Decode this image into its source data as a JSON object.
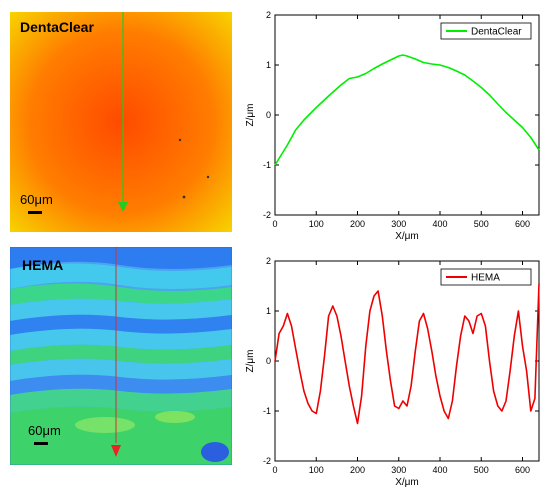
{
  "images": [
    {
      "label": "DentaClear",
      "scale_text": "60μm",
      "profile_line_color": "#22cc22",
      "arrow_color": "#22cc22"
    },
    {
      "label": "HEMA",
      "scale_text": "60μm",
      "profile_line_color": "#cc3333",
      "arrow_color": "#ee2222"
    }
  ],
  "chart_data": [
    {
      "type": "line",
      "xlabel": "X/μm",
      "ylabel": "Z/μm",
      "xlim": [
        0,
        640
      ],
      "ylim": [
        -2,
        2
      ],
      "xticks": [
        "0",
        "100",
        "200",
        "300",
        "400",
        "500",
        "600"
      ],
      "yticks": [
        "-2",
        "-1",
        "0",
        "1",
        "2"
      ],
      "legend_position": "top-right",
      "series": [
        {
          "name": "DentaClear",
          "color": "#00ee00",
          "x": [
            0,
            15,
            30,
            50,
            70,
            100,
            130,
            160,
            180,
            200,
            220,
            240,
            260,
            280,
            300,
            310,
            320,
            340,
            360,
            380,
            400,
            420,
            440,
            460,
            480,
            500,
            520,
            540,
            560,
            580,
            600,
            620,
            640
          ],
          "y": [
            -1.0,
            -0.8,
            -0.6,
            -0.3,
            -0.1,
            0.15,
            0.38,
            0.6,
            0.73,
            0.76,
            0.83,
            0.93,
            1.02,
            1.1,
            1.18,
            1.2,
            1.18,
            1.12,
            1.05,
            1.02,
            1.0,
            0.95,
            0.88,
            0.8,
            0.68,
            0.55,
            0.4,
            0.22,
            0.05,
            -0.1,
            -0.25,
            -0.45,
            -0.7
          ]
        }
      ]
    },
    {
      "type": "line",
      "xlabel": "X/μm",
      "ylabel": "Z/μm",
      "xlim": [
        0,
        640
      ],
      "ylim": [
        -2,
        2
      ],
      "xticks": [
        "0",
        "100",
        "200",
        "300",
        "400",
        "500",
        "600"
      ],
      "yticks": [
        "-2",
        "-1",
        "0",
        "1",
        "2"
      ],
      "legend_position": "top-right",
      "series": [
        {
          "name": "HEMA",
          "color": "#ee0000",
          "x": [
            0,
            10,
            20,
            30,
            40,
            50,
            60,
            70,
            80,
            90,
            100,
            110,
            120,
            130,
            140,
            150,
            160,
            170,
            180,
            190,
            200,
            210,
            220,
            230,
            240,
            250,
            260,
            270,
            280,
            290,
            300,
            310,
            320,
            330,
            340,
            350,
            360,
            370,
            380,
            390,
            400,
            410,
            420,
            430,
            440,
            450,
            460,
            470,
            480,
            490,
            500,
            510,
            520,
            530,
            540,
            550,
            560,
            570,
            580,
            590,
            600,
            610,
            620,
            630,
            640
          ],
          "y": [
            0.0,
            0.55,
            0.7,
            0.95,
            0.7,
            0.25,
            -0.2,
            -0.6,
            -0.85,
            -1.0,
            -1.05,
            -0.6,
            0.1,
            0.9,
            1.1,
            0.9,
            0.5,
            0.0,
            -0.5,
            -0.9,
            -1.25,
            -0.7,
            0.3,
            1.0,
            1.3,
            1.4,
            0.9,
            0.2,
            -0.4,
            -0.9,
            -0.95,
            -0.8,
            -0.9,
            -0.5,
            0.2,
            0.8,
            0.95,
            0.65,
            0.2,
            -0.3,
            -0.7,
            -1.0,
            -1.15,
            -0.8,
            -0.1,
            0.5,
            0.9,
            0.8,
            0.55,
            0.9,
            0.95,
            0.7,
            0.0,
            -0.6,
            -0.9,
            -1.0,
            -0.8,
            -0.2,
            0.5,
            1.0,
            0.3,
            -0.2,
            -1.0,
            -0.75,
            1.55
          ]
        }
      ]
    }
  ]
}
